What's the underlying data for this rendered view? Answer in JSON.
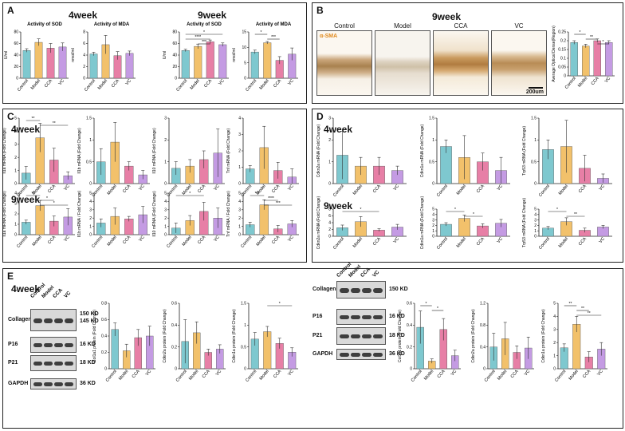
{
  "panels": {
    "A": {
      "label": "A",
      "left_title": "4week",
      "right_title": "9week"
    },
    "B": {
      "label": "B",
      "title": "9week",
      "micro": [
        "Control",
        "Model",
        "CCA",
        "VC"
      ],
      "stain": "α-SMA",
      "scale": "200um"
    },
    "C": {
      "label": "C",
      "top_title": "4week",
      "bottom_title": "9week"
    },
    "D": {
      "label": "D",
      "top_title": "4week",
      "bottom_title": "9week"
    },
    "E": {
      "label": "E",
      "left_title": "4week",
      "right_title": "9week"
    }
  },
  "blots": {
    "lanes": [
      "Control",
      "Model",
      "CCA",
      "VC"
    ],
    "rows": [
      {
        "name": "Collagen I",
        "kd": [
          "150 KD",
          "145 KD"
        ],
        "kd9": "150 KD"
      },
      {
        "name": "P16",
        "kd": [
          "16 KD"
        ],
        "kd9": "16 KD"
      },
      {
        "name": "P21",
        "kd": [
          "18 KD"
        ],
        "kd9": "18 KD"
      },
      {
        "name": "GAPDH",
        "kd": [
          "36 KD"
        ],
        "kd9": "36 KD"
      }
    ]
  },
  "colors": {
    "control": "#7ec8cf",
    "model": "#f2c16b",
    "cca": "#e77fa6",
    "vc": "#c49be3"
  },
  "chart_data": [
    {
      "id": "a1",
      "type": "bar",
      "title": "Activity of SOD",
      "ylabel": "U/ml",
      "categories": [
        "Control",
        "Model",
        "CCA",
        "VC"
      ],
      "values": [
        48,
        62,
        52,
        54
      ],
      "errors": [
        3,
        6,
        8,
        7
      ],
      "ylim": [
        0,
        80
      ],
      "ticks": [
        0,
        20,
        40,
        60,
        80
      ],
      "sig": []
    },
    {
      "id": "a2",
      "type": "bar",
      "title": "Activity of MDA",
      "ylabel": "nmol/ml",
      "categories": [
        "Control",
        "Model",
        "CCA",
        "VC"
      ],
      "values": [
        4.2,
        5.8,
        3.9,
        4.3
      ],
      "errors": [
        0.3,
        1.6,
        0.7,
        0.4
      ],
      "ylim": [
        0,
        8
      ],
      "ticks": [
        0,
        2,
        4,
        6,
        8
      ],
      "sig": []
    },
    {
      "id": "a3",
      "type": "bar",
      "title": "Activity of SOD",
      "ylabel": "U/ml",
      "categories": [
        "Control",
        "Model",
        "CCA",
        "VC"
      ],
      "values": [
        48,
        55,
        63,
        58
      ],
      "errors": [
        2,
        4,
        3,
        3
      ],
      "ylim": [
        0,
        80
      ],
      "ticks": [
        0,
        20,
        40,
        60,
        80
      ],
      "sig": [
        [
          0,
          3,
          "*"
        ],
        [
          0,
          2,
          "****"
        ],
        [
          1,
          2,
          "***"
        ]
      ]
    },
    {
      "id": "a4",
      "type": "bar",
      "title": "Activity of MDA",
      "ylabel": "nmol/ml",
      "categories": [
        "Control",
        "Model",
        "CCA",
        "VC"
      ],
      "values": [
        8.5,
        11.5,
        5.8,
        7.8
      ],
      "errors": [
        0.6,
        0.4,
        1.2,
        2.0
      ],
      "ylim": [
        0,
        15
      ],
      "ticks": [
        0,
        5,
        10,
        15
      ],
      "sig": [
        [
          0,
          1,
          "*"
        ],
        [
          1,
          2,
          "***"
        ]
      ]
    },
    {
      "id": "b1",
      "type": "bar",
      "title": "",
      "ylabel": "Average Optical Dense(Region)",
      "categories": [
        "Control",
        "Model",
        "CCA",
        "VC"
      ],
      "values": [
        0.19,
        0.17,
        0.2,
        0.19
      ],
      "errors": [
        0.01,
        0.01,
        0.01,
        0.01
      ],
      "ylim": [
        0,
        0.25
      ],
      "ticks": [
        0,
        0.05,
        0.1,
        0.15,
        0.2,
        0.25
      ],
      "sig": [
        [
          0,
          1,
          "*"
        ],
        [
          1,
          2,
          "**"
        ],
        [
          2,
          3,
          "*"
        ]
      ]
    },
    {
      "id": "c1",
      "type": "bar",
      "title": "",
      "ylabel": "Il1a mRNA (Fold Change)",
      "categories": [
        "Control",
        "Model",
        "CCA",
        "VC"
      ],
      "values": [
        0.8,
        3.5,
        1.8,
        0.6
      ],
      "errors": [
        0.5,
        1.1,
        0.9,
        0.3
      ],
      "ylim": [
        0,
        5
      ],
      "ticks": [
        0,
        1,
        2,
        3,
        4,
        5
      ],
      "sig": [
        [
          0,
          1,
          "**"
        ],
        [
          1,
          3,
          "**"
        ]
      ]
    },
    {
      "id": "c2",
      "type": "bar",
      "title": "",
      "ylabel": "Il1b mRNA (Fold Change)",
      "categories": [
        "Control",
        "Model",
        "CCA",
        "VC"
      ],
      "values": [
        0.5,
        0.95,
        0.4,
        0.2
      ],
      "errors": [
        0.3,
        0.45,
        0.1,
        0.1
      ],
      "ylim": [
        0,
        1.5
      ],
      "ticks": [
        0,
        0.5,
        1.0,
        1.5
      ],
      "sig": []
    },
    {
      "id": "c3",
      "type": "bar",
      "title": "",
      "ylabel": "Il10 mRNA (Fold Change)",
      "categories": [
        "Control",
        "Model",
        "CCA",
        "VC"
      ],
      "values": [
        0.7,
        0.8,
        1.1,
        1.4
      ],
      "errors": [
        0.3,
        0.3,
        0.4,
        1.1
      ],
      "ylim": [
        0,
        3
      ],
      "ticks": [
        0,
        1,
        2,
        3
      ],
      "sig": []
    },
    {
      "id": "c4",
      "type": "bar",
      "title": "",
      "ylabel": "Tnf mRNA (Fold Change)",
      "categories": [
        "Control",
        "Model",
        "CCA",
        "VC"
      ],
      "values": [
        0.9,
        2.2,
        0.8,
        0.4
      ],
      "errors": [
        0.2,
        1.3,
        0.5,
        0.5
      ],
      "ylim": [
        0,
        4
      ],
      "ticks": [
        0,
        1,
        2,
        3,
        4
      ],
      "sig": []
    },
    {
      "id": "c5",
      "type": "bar",
      "title": "",
      "ylabel": "Il1a mRNA (Fold Change)",
      "categories": [
        "Control",
        "Model",
        "CCA",
        "VC"
      ],
      "values": [
        1.2,
        2.8,
        1.3,
        1.7
      ],
      "errors": [
        0.2,
        0.5,
        0.5,
        0.8
      ],
      "ylim": [
        0,
        4
      ],
      "ticks": [
        0,
        1,
        2,
        3,
        4
      ],
      "sig": [
        [
          0,
          1,
          "**"
        ],
        [
          1,
          2,
          "*"
        ],
        [
          1,
          3,
          "*"
        ]
      ]
    },
    {
      "id": "c6",
      "type": "bar",
      "title": "",
      "ylabel": "Il1b mRNA / Fold Change)",
      "categories": [
        "Control",
        "Model",
        "CCA",
        "VC"
      ],
      "values": [
        1.4,
        2.2,
        1.9,
        2.4
      ],
      "errors": [
        0.5,
        1.0,
        0.3,
        1.0
      ],
      "ylim": [
        0,
        5
      ],
      "ticks": [
        0,
        1,
        2,
        3,
        4,
        5
      ],
      "sig": []
    },
    {
      "id": "c7",
      "type": "bar",
      "title": "",
      "ylabel": "Il10 mRNA (Fold Change)",
      "categories": [
        "Control",
        "Model",
        "CCA",
        "VC"
      ],
      "values": [
        0.8,
        1.7,
        2.8,
        2.0
      ],
      "errors": [
        0.6,
        0.6,
        1.1,
        1.2
      ],
      "ylim": [
        0,
        5
      ],
      "ticks": [
        0,
        1,
        2,
        3,
        4,
        5
      ],
      "sig": [
        [
          0,
          2,
          "*"
        ]
      ]
    },
    {
      "id": "c8",
      "type": "bar",
      "title": "",
      "ylabel": "Tnf mRNA / Fold Change)",
      "categories": [
        "Control",
        "Model",
        "CCA",
        "VC"
      ],
      "values": [
        1.2,
        3.6,
        0.7,
        1.3
      ],
      "errors": [
        0.3,
        0.6,
        0.4,
        0.4
      ],
      "ylim": [
        0,
        5
      ],
      "ticks": [
        0,
        1,
        2,
        3,
        4,
        5
      ],
      "sig": [
        [
          0,
          1,
          "***"
        ],
        [
          1,
          2,
          "****"
        ],
        [
          1,
          3,
          "***"
        ]
      ]
    },
    {
      "id": "d1",
      "type": "bar",
      "title": "",
      "ylabel": "Cdkn2a mRNA (Fold Change)",
      "categories": [
        "Control",
        "Model",
        "CCA",
        "VC"
      ],
      "values": [
        1.3,
        0.8,
        0.8,
        0.6
      ],
      "errors": [
        1.1,
        0.4,
        0.4,
        0.2
      ],
      "ylim": [
        0,
        3
      ],
      "ticks": [
        0,
        1,
        2,
        3
      ],
      "sig": []
    },
    {
      "id": "d2",
      "type": "bar",
      "title": "",
      "ylabel": "Cdkn1a mRNA (Fold Change)",
      "categories": [
        "Control",
        "Model",
        "CCA",
        "VC"
      ],
      "values": [
        0.85,
        0.6,
        0.5,
        0.3
      ],
      "errors": [
        0.15,
        0.5,
        0.2,
        0.3
      ],
      "ylim": [
        0,
        1.5
      ],
      "ticks": [
        0,
        0.5,
        1.0,
        1.5
      ],
      "sig": []
    },
    {
      "id": "d3",
      "type": "bar",
      "title": "",
      "ylabel": "Trp53 mRNA (Fold Change)",
      "categories": [
        "Control",
        "Model",
        "CCA",
        "VC"
      ],
      "values": [
        0.78,
        0.85,
        0.35,
        0.12
      ],
      "errors": [
        0.22,
        0.6,
        0.3,
        0.1
      ],
      "ylim": [
        0,
        1.5
      ],
      "ticks": [
        0,
        0.5,
        1.0,
        1.5
      ],
      "sig": []
    },
    {
      "id": "d4",
      "type": "bar",
      "title": "",
      "ylabel": "Cdkn2a mRNA (Fold Change)",
      "categories": [
        "Control",
        "Model",
        "CCA",
        "VC"
      ],
      "values": [
        2.5,
        4.3,
        1.8,
        2.7
      ],
      "errors": [
        0.8,
        1.5,
        0.4,
        0.8
      ],
      "ylim": [
        0,
        8
      ],
      "ticks": [
        0,
        2,
        4,
        6,
        8
      ],
      "sig": [
        [
          0,
          2,
          "*"
        ]
      ]
    },
    {
      "id": "d5",
      "type": "bar",
      "title": "",
      "ylabel": "Cdkn1a mRNA (Fold Change)",
      "categories": [
        "Control",
        "Model",
        "CCA",
        "VC"
      ],
      "values": [
        2.2,
        3.3,
        1.9,
        2.4
      ],
      "errors": [
        0.3,
        0.6,
        0.4,
        0.7
      ],
      "ylim": [
        0,
        5
      ],
      "ticks": [
        0,
        1,
        2,
        3,
        4,
        5
      ],
      "sig": [
        [
          0,
          1,
          "*"
        ],
        [
          1,
          2,
          "*"
        ]
      ]
    },
    {
      "id": "d6",
      "type": "bar",
      "title": "",
      "ylabel": "Trp53 mRNA (Fold Change)",
      "categories": [
        "Control",
        "Model",
        "CCA",
        "VC"
      ],
      "values": [
        1.5,
        2.7,
        1.1,
        1.7
      ],
      "errors": [
        0.3,
        0.7,
        0.4,
        0.3
      ],
      "ylim": [
        0,
        5
      ],
      "ticks": [
        0,
        1,
        2,
        3,
        4,
        5
      ],
      "sig": [
        [
          0,
          1,
          "*"
        ],
        [
          1,
          2,
          "**"
        ]
      ]
    },
    {
      "id": "e1",
      "type": "bar",
      "title": "",
      "ylabel": "Col1a1 protein (Fold Change)",
      "categories": [
        "Control",
        "Model",
        "CCA",
        "VC"
      ],
      "values": [
        0.48,
        0.22,
        0.38,
        0.4
      ],
      "errors": [
        0.08,
        0.08,
        0.1,
        0.12
      ],
      "ylim": [
        0,
        0.8
      ],
      "ticks": [
        0,
        0.2,
        0.4,
        0.6,
        0.8
      ],
      "sig": []
    },
    {
      "id": "e2",
      "type": "bar",
      "title": "",
      "ylabel": "Cdkn2a protein (Fold Change)",
      "categories": [
        "Control",
        "Model",
        "CCA",
        "VC"
      ],
      "values": [
        0.25,
        0.33,
        0.15,
        0.18
      ],
      "errors": [
        0.2,
        0.1,
        0.03,
        0.04
      ],
      "ylim": [
        0,
        0.6
      ],
      "ticks": [
        0,
        0.2,
        0.4,
        0.6
      ],
      "sig": []
    },
    {
      "id": "e3",
      "type": "bar",
      "title": "",
      "ylabel": "Cdkn1a protein (Fold Change)",
      "categories": [
        "Control",
        "Model",
        "CCA",
        "VC"
      ],
      "values": [
        0.68,
        0.85,
        0.58,
        0.38
      ],
      "errors": [
        0.15,
        0.12,
        0.12,
        0.1
      ],
      "ylim": [
        0,
        1.5
      ],
      "ticks": [
        0,
        0.5,
        1.0,
        1.5
      ],
      "sig": [
        [
          1,
          3,
          "*"
        ]
      ]
    },
    {
      "id": "e4",
      "type": "bar",
      "title": "",
      "ylabel": "Col1a1 protein (Fold Change)",
      "categories": [
        "Control",
        "Model",
        "CCA",
        "VC"
      ],
      "values": [
        0.38,
        0.07,
        0.36,
        0.12
      ],
      "errors": [
        0.15,
        0.02,
        0.1,
        0.05
      ],
      "ylim": [
        0,
        0.6
      ],
      "ticks": [
        0,
        0.2,
        0.4,
        0.6
      ],
      "sig": [
        [
          0,
          1,
          "*"
        ],
        [
          1,
          2,
          "*"
        ]
      ]
    },
    {
      "id": "e5",
      "type": "bar",
      "title": "",
      "ylabel": "Cdkn2a protein (Fold Change)",
      "categories": [
        "Control",
        "Model",
        "CCA",
        "VC"
      ],
      "values": [
        0.4,
        0.55,
        0.3,
        0.38
      ],
      "errors": [
        0.25,
        0.3,
        0.12,
        0.2
      ],
      "ylim": [
        0,
        1.2
      ],
      "ticks": [
        0,
        0.4,
        0.8,
        1.2
      ],
      "sig": []
    },
    {
      "id": "e6",
      "type": "bar",
      "title": "",
      "ylabel": "Cdkn1a protein (Fold Change)",
      "categories": [
        "Control",
        "Model",
        "CCA",
        "VC"
      ],
      "values": [
        1.6,
        3.4,
        0.9,
        1.5
      ],
      "errors": [
        0.3,
        0.6,
        0.4,
        0.5
      ],
      "ylim": [
        0,
        5
      ],
      "ticks": [
        0,
        1,
        2,
        3,
        4,
        5
      ],
      "sig": [
        [
          0,
          1,
          "**"
        ],
        [
          1,
          2,
          "**"
        ],
        [
          1,
          3,
          "**"
        ]
      ]
    }
  ]
}
